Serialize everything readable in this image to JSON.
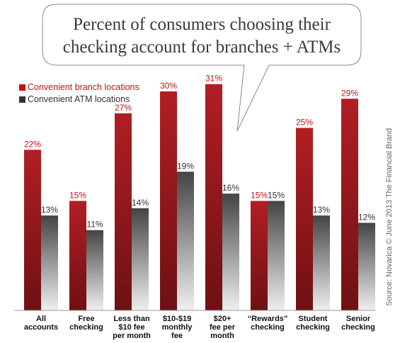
{
  "chart_data": {
    "type": "bar",
    "title": [
      "Percent of consumers choosing their",
      "checking account for branches + ATMs"
    ],
    "categories": [
      [
        "All",
        "accounts"
      ],
      [
        "Free",
        "checking"
      ],
      [
        "Less than",
        "$10 fee",
        "per month"
      ],
      [
        "$10-$19",
        "monthly",
        "fee"
      ],
      [
        "$20+",
        "fee per",
        "month"
      ],
      [
        "“Rewards”",
        "checking"
      ],
      [
        "Student",
        "checking"
      ],
      [
        "Senior",
        "checking"
      ]
    ],
    "series": [
      {
        "name": "Convenient branch locations",
        "values": [
          22,
          15,
          27,
          30,
          31,
          15,
          25,
          29
        ],
        "labels": [
          "22%",
          "15%",
          "27%",
          "30%",
          "31%",
          "15%",
          "25%",
          "29%"
        ]
      },
      {
        "name": "Convenient ATM locations",
        "values": [
          13,
          11,
          14,
          19,
          16,
          15,
          13,
          12
        ],
        "labels": [
          "13%",
          "11%",
          "14%",
          "19%",
          "16%",
          "15%",
          "13%",
          "12%"
        ]
      }
    ],
    "ylim": [
      0,
      33
    ],
    "grid": false,
    "legend_position": "top-left",
    "source": "Source: Novarica © June 2013 The Financial Brand"
  },
  "colors": {
    "branch_top": "#b11e23",
    "branch_bottom": "#6e1114",
    "branch_label": "#c0141a",
    "atm_top": "#4a4a4a",
    "atm_bottom": "#ececec",
    "atm_label": "#333333"
  }
}
